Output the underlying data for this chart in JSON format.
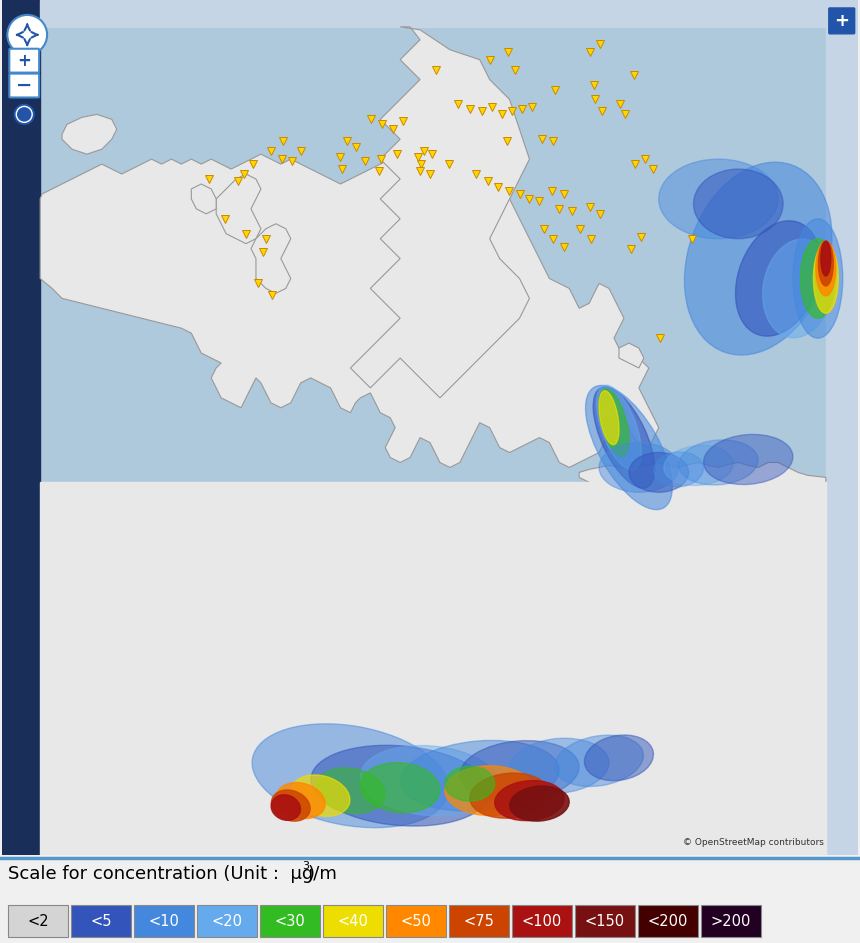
{
  "legend_labels": [
    "<2",
    "<5",
    "<10",
    "<20",
    "<30",
    "<40",
    "<50",
    "<75",
    "<100",
    "<150",
    "<200",
    ">200"
  ],
  "legend_colors": [
    "#d4d4d4",
    "#3355bb",
    "#4488dd",
    "#66aaee",
    "#33bb22",
    "#eedd00",
    "#ff8800",
    "#cc4400",
    "#aa1111",
    "#771111",
    "#440000",
    "#220022"
  ],
  "map_ocean_color": "#aec8dc",
  "map_land_color": "#e8e8e8",
  "map_border_color": "#999999",
  "left_panel_color": "#1a2e5a",
  "right_panel_color": "#c5d5e5",
  "top_stripe_color": "#c5d5e5",
  "legend_bg_color": "#f0f0f0",
  "divider_color": "#5599cc",
  "fig_width": 8.6,
  "fig_height": 9.43,
  "legend_label_fontsize": 10.5,
  "scale_label_fontsize": 13,
  "copyright_text": "© OpenStreetMap contributors"
}
